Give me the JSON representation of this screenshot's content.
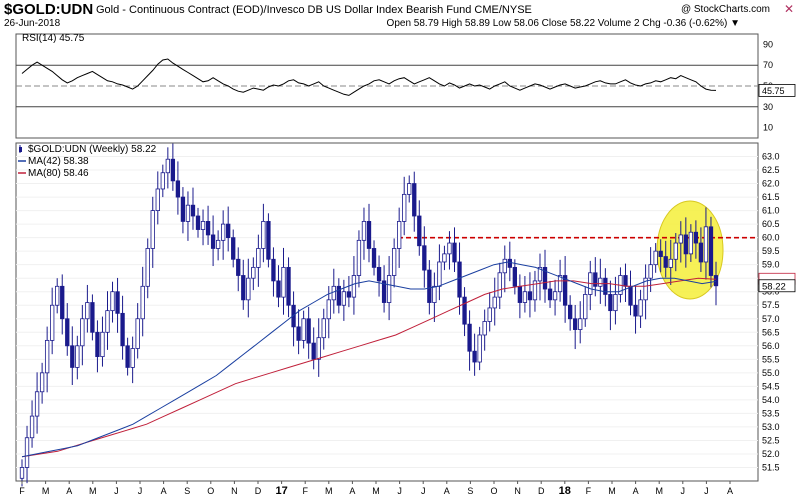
{
  "header": {
    "symbol": "$GOLD:UDN",
    "description": "Gold - Continuous Contract (EOD)/Invesco DB US Dollar Index Bearish Fund  CME/NYSE",
    "date": "26-Jun-2018",
    "watermark": "@ StockCharts.com",
    "stats_line": "Open 58.79  High 58.89  Low 58.06  Close 58.22  Volume 2  Chg -0.36 (-0.62%) ▼",
    "close_glyph": "✕"
  },
  "colors": {
    "candle": "#1a1a8c",
    "ma42": "#1a3fa0",
    "ma80": "#c0203a",
    "rsi_line": "#000000",
    "resistance": "#cc0000",
    "highlight_fill": "#f4ee3a"
  },
  "chart_data": [
    {
      "type": "line",
      "name": "RSI panel",
      "legend": "RSI(14) 45.75",
      "last_value_label": "45.75",
      "ylim": [
        0,
        100
      ],
      "yticks": [
        10,
        30,
        50,
        70,
        90
      ],
      "reference_lines": [
        30,
        50,
        70
      ],
      "values": [
        62,
        66,
        70,
        73,
        70,
        67,
        64,
        60,
        56,
        53,
        55,
        58,
        60,
        62,
        64,
        61,
        58,
        55,
        54,
        52,
        51,
        49,
        47,
        50,
        55,
        60,
        65,
        71,
        75,
        76,
        72,
        69,
        66,
        63,
        60,
        57,
        54,
        55,
        58,
        55,
        52,
        50,
        47,
        45,
        44,
        46,
        48,
        47,
        46,
        49,
        51,
        50,
        52,
        55,
        56,
        53,
        52,
        50,
        52,
        54,
        50,
        48,
        46,
        44,
        42,
        41,
        44,
        47,
        50,
        52,
        55,
        56,
        54,
        52,
        55,
        57,
        58,
        55,
        52,
        54,
        56,
        58,
        55,
        52,
        50,
        53,
        51,
        48,
        50,
        52,
        50,
        51,
        49,
        47,
        50,
        52,
        54,
        50,
        48,
        46,
        48,
        50,
        52,
        51,
        49,
        47,
        49,
        51,
        52,
        50,
        48,
        49,
        50,
        52,
        54,
        55,
        53,
        52,
        52,
        54,
        56,
        53,
        51,
        50,
        52,
        53,
        55,
        54,
        56,
        58,
        57,
        60,
        58,
        56,
        54,
        50,
        47,
        46,
        45.75
      ]
    },
    {
      "type": "candlestick",
      "name": "Price panel",
      "legend": [
        "$GOLD:UDN (Weekly) 58.22",
        "MA(42) 58.38",
        "MA(80) 58.46"
      ],
      "last_value_label": "58.22",
      "ylim": [
        51,
        63.5
      ],
      "yticks": [
        51.5,
        52.0,
        52.5,
        53.0,
        53.5,
        54.0,
        54.5,
        55.0,
        55.5,
        56.0,
        56.5,
        57.0,
        57.5,
        58.0,
        58.5,
        59.0,
        59.5,
        60.0,
        60.5,
        61.0,
        61.5,
        62.0,
        62.5,
        63.0
      ],
      "x_labels": [
        "F",
        "M",
        "A",
        "M",
        "J",
        "J",
        "A",
        "S",
        "O",
        "N",
        "D",
        "17",
        "F",
        "M",
        "A",
        "M",
        "J",
        "J",
        "A",
        "S",
        "O",
        "N",
        "D",
        "18",
        "F",
        "M",
        "A",
        "M",
        "J",
        "J",
        "A"
      ],
      "close": [
        51.5,
        52.6,
        53.4,
        54.3,
        55.0,
        56.2,
        57.5,
        58.2,
        57.0,
        56.0,
        55.2,
        56.0,
        57.0,
        57.6,
        56.5,
        55.6,
        56.5,
        57.3,
        58.0,
        57.2,
        56.0,
        55.2,
        55.9,
        57.0,
        58.2,
        59.6,
        61.0,
        61.8,
        62.4,
        62.9,
        62.1,
        61.5,
        60.6,
        61.2,
        60.8,
        60.3,
        60.6,
        60.1,
        59.6,
        59.9,
        60.5,
        60.0,
        59.2,
        58.6,
        57.7,
        58.5,
        58.9,
        59.6,
        60.6,
        59.2,
        58.4,
        57.8,
        58.9,
        57.5,
        56.7,
        56.2,
        57.0,
        56.1,
        55.5,
        56.3,
        57.0,
        57.7,
        58.2,
        57.5,
        58.0,
        57.8,
        58.6,
        59.9,
        60.6,
        59.6,
        58.9,
        58.4,
        57.6,
        58.6,
        59.6,
        60.6,
        61.6,
        62.0,
        60.8,
        59.7,
        58.8,
        57.6,
        58.2,
        59.1,
        59.4,
        59.8,
        59.1,
        57.8,
        56.8,
        55.8,
        55.4,
        56.4,
        56.9,
        57.4,
        57.8,
        58.7,
        59.2,
        58.9,
        58.2,
        57.6,
        58.0,
        57.7,
        58.4,
        58.9,
        58.1,
        57.7,
        58.0,
        58.6,
        57.5,
        57.0,
        56.6,
        57.0,
        57.9,
        58.7,
        58.2,
        58.5,
        57.9,
        57.3,
        57.9,
        58.6,
        58.2,
        57.5,
        57.1,
        57.7,
        58.5,
        59.0,
        59.5,
        59.3,
        58.9,
        59.2,
        59.8,
        60.1,
        59.4,
        60.2,
        59.8,
        59.1,
        60.4,
        58.6,
        58.22
      ],
      "ma42": [
        51.9,
        52.0,
        52.1,
        52.2,
        52.3,
        52.5,
        52.7,
        52.9,
        53.1,
        53.4,
        53.7,
        54.0,
        54.3,
        54.6,
        54.9,
        55.3,
        55.7,
        56.1,
        56.5,
        56.9,
        57.3,
        57.6,
        57.9,
        58.1,
        58.3,
        58.4,
        58.3,
        58.2,
        58.1,
        58.1,
        58.2,
        58.4,
        58.6,
        58.8,
        59.0,
        59.1,
        59.0,
        58.9,
        58.7,
        58.5,
        58.3,
        58.1,
        58.0,
        58.0,
        58.2,
        58.4,
        58.5,
        58.5,
        58.4,
        58.3,
        58.38
      ],
      "ma80": [
        51.9,
        52.0,
        52.1,
        52.3,
        52.5,
        52.7,
        52.9,
        53.1,
        53.4,
        53.7,
        54.0,
        54.3,
        54.6,
        54.8,
        55.0,
        55.2,
        55.4,
        55.6,
        55.8,
        56.0,
        56.2,
        56.4,
        56.7,
        57.0,
        57.3,
        57.6,
        57.9,
        58.1,
        58.2,
        58.3,
        58.4,
        58.4,
        58.3,
        58.3,
        58.2,
        58.2,
        58.3,
        58.4,
        58.5,
        58.46
      ],
      "annotations": [
        {
          "type": "horizontal_dashed_line",
          "value": 60.0
        },
        {
          "type": "highlight_ellipse",
          "note": "recent weeks near 60 resistance"
        }
      ]
    }
  ]
}
